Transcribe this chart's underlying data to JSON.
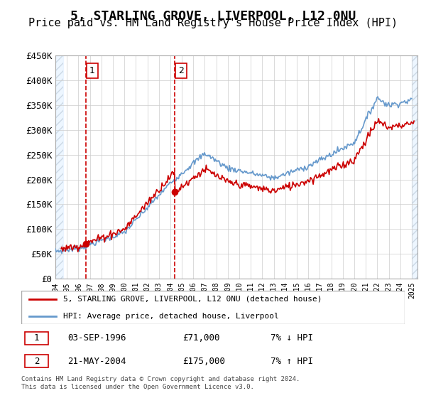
{
  "title": "5, STARLING GROVE, LIVERPOOL, L12 0NU",
  "subtitle": "Price paid vs. HM Land Registry's House Price Index (HPI)",
  "xlabel": "",
  "ylabel": "",
  "ylim": [
    0,
    450000
  ],
  "yticks": [
    0,
    50000,
    100000,
    150000,
    200000,
    250000,
    300000,
    350000,
    400000,
    450000
  ],
  "ytick_labels": [
    "£0",
    "£50K",
    "£100K",
    "£150K",
    "£200K",
    "£250K",
    "£300K",
    "£350K",
    "£400K",
    "£450K"
  ],
  "xmin": 1994.0,
  "xmax": 2025.5,
  "sale1_x": 1996.67,
  "sale1_y": 71000,
  "sale1_label": "1",
  "sale1_date": "03-SEP-1996",
  "sale1_price": "£71,000",
  "sale1_hpi": "7% ↓ HPI",
  "sale2_x": 2004.38,
  "sale2_y": 175000,
  "sale2_label": "2",
  "sale2_date": "21-MAY-2004",
  "sale2_price": "£175,000",
  "sale2_hpi": "7% ↑ HPI",
  "hpi_color": "#6699cc",
  "price_color": "#cc0000",
  "vline_color": "#cc0000",
  "background_hatch_color": "#ccddee",
  "grid_color": "#cccccc",
  "title_fontsize": 13,
  "subtitle_fontsize": 11,
  "legend_line1": "5, STARLING GROVE, LIVERPOOL, L12 0NU (detached house)",
  "legend_line2": "HPI: Average price, detached house, Liverpool",
  "footer": "Contains HM Land Registry data © Crown copyright and database right 2024.\nThis data is licensed under the Open Government Licence v3.0.",
  "xticks": [
    1994,
    1995,
    1996,
    1997,
    1998,
    1999,
    2000,
    2001,
    2002,
    2003,
    2004,
    2005,
    2006,
    2007,
    2008,
    2009,
    2010,
    2011,
    2012,
    2013,
    2014,
    2015,
    2016,
    2017,
    2018,
    2019,
    2020,
    2021,
    2022,
    2023,
    2024,
    2025
  ]
}
